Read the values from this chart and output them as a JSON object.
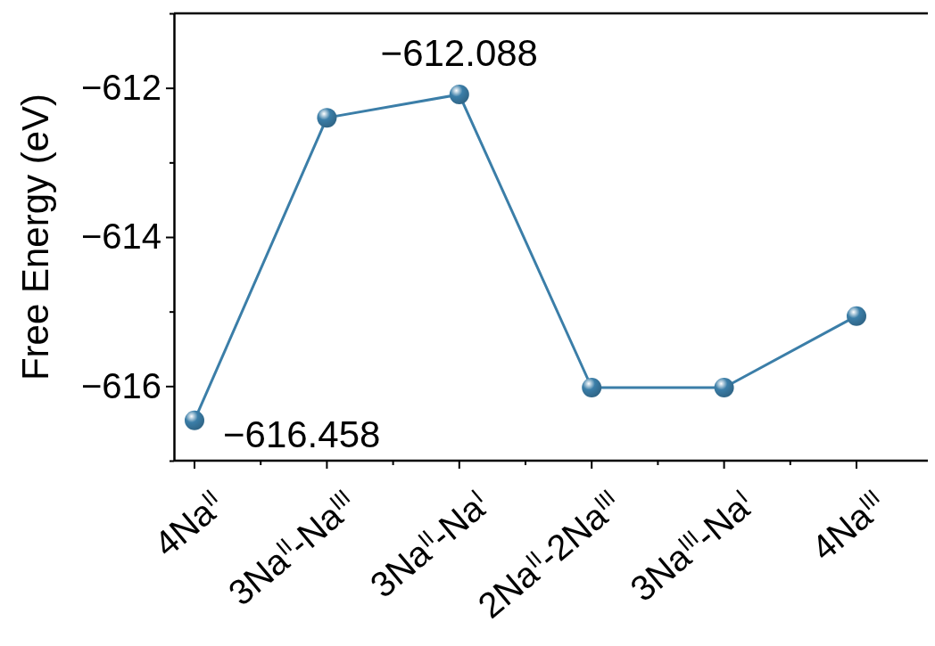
{
  "chart_data": {
    "type": "line",
    "ylabel": "Free Energy (eV)",
    "categories": [
      "4Na$^{II}$",
      "3Na$^{II}$-Na$^{III}$",
      "3Na$^{II}$-Na$^{I}$",
      "2Na$^{II}$-2Na$^{III}$",
      "3Na$^{III}$-Na$^{I}$",
      "4Na$^{III}$"
    ],
    "series": [
      {
        "color": "#3b7ea8",
        "values": [
          -616.458,
          -612.4,
          -612.088,
          -616.02,
          -616.02,
          -615.06
        ],
        "value_labels": [
          "−616.458",
          null,
          "−612.088",
          null,
          null,
          null
        ]
      }
    ],
    "ylim": [
      -617,
      -611
    ],
    "yticks": [
      {
        "value": -617,
        "label": null
      },
      -616,
      {
        "value": -615,
        "label": null
      },
      -614,
      {
        "value": -613,
        "label": null
      },
      -612,
      {
        "value": -611,
        "label": null
      }
    ],
    "marker": "circle",
    "line_style": "solid",
    "grid": false
  }
}
